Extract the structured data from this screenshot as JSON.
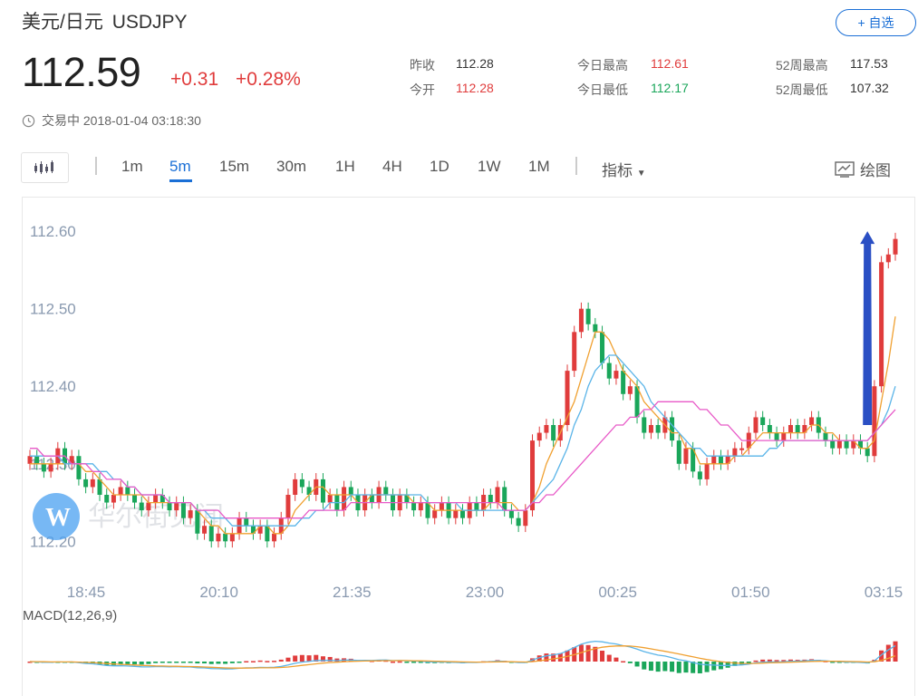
{
  "header": {
    "name": "美元/日元",
    "symbol": "USDJPY",
    "watch_label": "+ 自选",
    "price": "112.59",
    "change": "+0.31",
    "change_pct": "+0.28%",
    "status": "交易中 2018-01-04 03:18:30"
  },
  "stats": {
    "prev_close_label": "昨收",
    "prev_close": "112.28",
    "open_label": "今开",
    "open": "112.28",
    "high_label": "今日最高",
    "high": "112.61",
    "low_label": "今日最低",
    "low": "112.17",
    "w52_high_label": "52周最高",
    "w52_high": "117.53",
    "w52_low_label": "52周最低",
    "w52_low": "107.32"
  },
  "toolbar": {
    "timeframes": [
      "1m",
      "5m",
      "15m",
      "30m",
      "1H",
      "4H",
      "1D",
      "1W",
      "1M"
    ],
    "active": "5m",
    "indicator_label": "指标",
    "draw_label": "绘图"
  },
  "watermark": {
    "text": "华尔街见闻",
    "logo_letter": "W"
  },
  "colors": {
    "up": "#e03c3c",
    "down": "#1aa65a",
    "accent": "#1a6fd6",
    "ma5": "#f0a030",
    "ma10": "#5ab4e8",
    "ma20": "#e85ac8",
    "macd_dif": "#5ab4e8",
    "macd_dea": "#f0a030",
    "arrow": "#2a4fc4"
  },
  "chart_data": {
    "type": "candlestick",
    "interval": "5m",
    "ylim": [
      112.17,
      112.62
    ],
    "yticks": [
      112.2,
      112.3,
      112.4,
      112.5,
      112.6
    ],
    "ytick_labels": [
      "112.20",
      "112.30",
      "112.40",
      "112.50",
      "112.60"
    ],
    "xtick_labels": [
      "18:45",
      "20:10",
      "21:35",
      "23:00",
      "00:25",
      "01:50",
      "03:15"
    ],
    "indicator": "MACD(12,26,9)",
    "annotation": "upward arrow near latest candles",
    "series": [
      {
        "name": "close",
        "values": [
          112.31,
          112.3,
          112.29,
          112.3,
          112.32,
          112.3,
          112.31,
          112.28,
          112.27,
          112.28,
          112.26,
          112.25,
          112.26,
          112.27,
          112.26,
          112.25,
          112.24,
          112.25,
          112.26,
          112.25,
          112.24,
          112.25,
          112.23,
          112.24,
          112.21,
          112.22,
          112.2,
          112.21,
          112.2,
          112.21,
          112.23,
          112.22,
          112.21,
          112.22,
          112.2,
          112.21,
          112.23,
          112.26,
          112.28,
          112.27,
          112.26,
          112.28,
          112.25,
          112.26,
          112.24,
          112.27,
          112.26,
          112.24,
          112.26,
          112.25,
          112.27,
          112.26,
          112.24,
          112.26,
          112.25,
          112.24,
          112.25,
          112.23,
          112.24,
          112.25,
          112.23,
          112.24,
          112.23,
          112.25,
          112.24,
          112.26,
          112.25,
          112.27,
          112.24,
          112.23,
          112.22,
          112.24,
          112.33,
          112.34,
          112.35,
          112.33,
          112.35,
          112.42,
          112.47,
          112.5,
          112.48,
          112.47,
          112.43,
          112.41,
          112.42,
          112.39,
          112.4,
          112.36,
          112.34,
          112.35,
          112.34,
          112.36,
          112.33,
          112.3,
          112.32,
          112.29,
          112.28,
          112.3,
          112.31,
          112.3,
          112.31,
          112.32,
          112.32,
          112.34,
          112.36,
          112.35,
          112.34,
          112.33,
          112.34,
          112.35,
          112.34,
          112.35,
          112.36,
          112.34,
          112.33,
          112.32,
          112.33,
          112.32,
          112.33,
          112.32,
          112.31,
          112.4,
          112.56,
          112.57,
          112.59
        ]
      },
      {
        "name": "MA5",
        "values": [
          112.3,
          112.3,
          112.3,
          112.3,
          112.3,
          112.3,
          112.3,
          112.3,
          112.29,
          112.29,
          112.28,
          112.27,
          112.26,
          112.26,
          112.26,
          112.26,
          112.26,
          112.25,
          112.25,
          112.25,
          112.25,
          112.25,
          112.25,
          112.25,
          112.24,
          112.23,
          112.22,
          112.22,
          112.21,
          112.21,
          112.21,
          112.21,
          112.21,
          112.22,
          112.22,
          112.21,
          112.21,
          112.22,
          112.24,
          112.25,
          112.26,
          112.27,
          112.27,
          112.26,
          112.26,
          112.26,
          112.26,
          112.25,
          112.25,
          112.26,
          112.26,
          112.26,
          112.26,
          112.26,
          112.26,
          112.25,
          112.25,
          112.25,
          112.24,
          112.24,
          112.24,
          112.24,
          112.24,
          112.24,
          112.24,
          112.24,
          112.25,
          112.25,
          112.25,
          112.25,
          112.24,
          112.24,
          112.25,
          112.27,
          112.3,
          112.32,
          112.34,
          112.36,
          112.38,
          112.41,
          112.44,
          112.47,
          112.47,
          112.46,
          112.44,
          112.42,
          112.41,
          112.4,
          112.38,
          112.37,
          112.36,
          112.35,
          112.34,
          112.34,
          112.32,
          112.32,
          112.3,
          112.3,
          112.3,
          112.3,
          112.3,
          112.31,
          112.31,
          112.32,
          112.33,
          112.34,
          112.34,
          112.34,
          112.34,
          112.34,
          112.34,
          112.34,
          112.35,
          112.35,
          112.34,
          112.34,
          112.33,
          112.33,
          112.33,
          112.32,
          112.32,
          112.33,
          112.38,
          112.43,
          112.49
        ]
      },
      {
        "name": "MA10",
        "values": [
          112.31,
          112.31,
          112.31,
          112.31,
          112.31,
          112.3,
          112.3,
          112.3,
          112.3,
          112.3,
          112.29,
          112.29,
          112.28,
          112.28,
          112.27,
          112.27,
          112.26,
          112.26,
          112.26,
          112.26,
          112.25,
          112.25,
          112.25,
          112.25,
          112.24,
          112.24,
          112.23,
          112.23,
          112.23,
          112.22,
          112.22,
          112.22,
          112.22,
          112.22,
          112.22,
          112.22,
          112.22,
          112.22,
          112.22,
          112.23,
          112.23,
          112.24,
          112.24,
          112.25,
          112.25,
          112.25,
          112.26,
          112.26,
          112.26,
          112.26,
          112.26,
          112.26,
          112.26,
          112.26,
          112.26,
          112.26,
          112.26,
          112.25,
          112.25,
          112.25,
          112.25,
          112.25,
          112.24,
          112.24,
          112.24,
          112.24,
          112.24,
          112.24,
          112.24,
          112.24,
          112.24,
          112.24,
          112.25,
          112.26,
          112.27,
          112.28,
          112.3,
          112.32,
          112.35,
          112.37,
          112.4,
          112.42,
          112.43,
          112.44,
          112.44,
          112.43,
          112.42,
          112.41,
          112.4,
          112.38,
          112.37,
          112.36,
          112.35,
          112.34,
          112.33,
          112.32,
          112.32,
          112.31,
          112.31,
          112.31,
          112.31,
          112.31,
          112.31,
          112.31,
          112.31,
          112.31,
          112.32,
          112.32,
          112.33,
          112.33,
          112.33,
          112.33,
          112.33,
          112.33,
          112.33,
          112.33,
          112.33,
          112.33,
          112.33,
          112.33,
          112.33,
          112.34,
          112.35,
          112.37,
          112.4
        ]
      },
      {
        "name": "MA20",
        "values": [
          112.32,
          112.32,
          112.31,
          112.31,
          112.31,
          112.31,
          112.3,
          112.3,
          112.3,
          112.29,
          112.29,
          112.28,
          112.28,
          112.28,
          112.27,
          112.27,
          112.26,
          112.26,
          112.26,
          112.26,
          112.25,
          112.25,
          112.25,
          112.25,
          112.24,
          112.24,
          112.24,
          112.24,
          112.23,
          112.23,
          112.23,
          112.23,
          112.23,
          112.23,
          112.23,
          112.23,
          112.23,
          112.23,
          112.23,
          112.23,
          112.24,
          112.24,
          112.24,
          112.24,
          112.24,
          112.24,
          112.25,
          112.25,
          112.25,
          112.25,
          112.25,
          112.25,
          112.25,
          112.25,
          112.25,
          112.25,
          112.25,
          112.25,
          112.25,
          112.25,
          112.25,
          112.25,
          112.25,
          112.25,
          112.25,
          112.25,
          112.25,
          112.25,
          112.24,
          112.24,
          112.24,
          112.24,
          112.25,
          112.25,
          112.26,
          112.26,
          112.27,
          112.28,
          112.29,
          112.3,
          112.31,
          112.32,
          112.33,
          112.34,
          112.35,
          112.35,
          112.36,
          112.36,
          112.37,
          112.37,
          112.38,
          112.38,
          112.38,
          112.38,
          112.38,
          112.38,
          112.37,
          112.37,
          112.36,
          112.35,
          112.35,
          112.34,
          112.33,
          112.33,
          112.33,
          112.33,
          112.33,
          112.33,
          112.33,
          112.33,
          112.33,
          112.33,
          112.33,
          112.33,
          112.33,
          112.33,
          112.33,
          112.33,
          112.33,
          112.33,
          112.33,
          112.34,
          112.35,
          112.36,
          112.37
        ]
      }
    ]
  }
}
